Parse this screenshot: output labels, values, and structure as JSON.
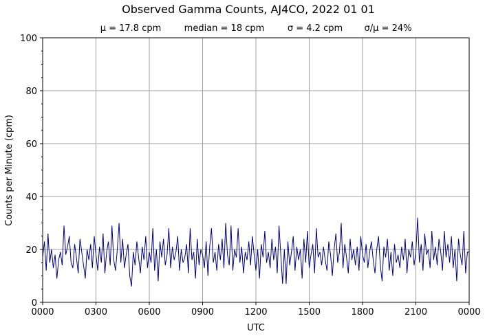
{
  "chart_data": {
    "type": "line",
    "title": "Observed Gamma Counts, AJ4CO, 2022 01 01",
    "subtitle": [
      "μ = 17.8 cpm",
      "median = 18 cpm",
      "σ = 4.2 cpm",
      "σ/μ = 24%"
    ],
    "xlabel": "UTC",
    "ylabel": "Counts per Minute (cpm)",
    "x_tick_labels": [
      "0000",
      "0300",
      "0600",
      "0900",
      "1200",
      "1500",
      "1800",
      "2100",
      "0000"
    ],
    "x_range_hours": [
      0,
      24
    ],
    "ylim": [
      0,
      100
    ],
    "y_ticks": [
      0,
      20,
      40,
      60,
      80,
      100
    ],
    "y_minor_step": 5,
    "grid": true,
    "line_color": "#000080",
    "series": [
      {
        "sample_interval_minutes": 6,
        "values": [
          17,
          23,
          12,
          26,
          15,
          20,
          13,
          18,
          9,
          16,
          19,
          14,
          29,
          18,
          21,
          25,
          15,
          13,
          22,
          17,
          11,
          24,
          19,
          14,
          9,
          20,
          16,
          22,
          13,
          25,
          18,
          12,
          21,
          15,
          26,
          11,
          19,
          23,
          14,
          29,
          16,
          12,
          20,
          30,
          15,
          24,
          13,
          18,
          22,
          10,
          6,
          19,
          14,
          23,
          17,
          11,
          21,
          16,
          25,
          13,
          19,
          15,
          28,
          12,
          20,
          8,
          23,
          17,
          24,
          14,
          18,
          28,
          13,
          21,
          16,
          19,
          25,
          12,
          20,
          15,
          17,
          22,
          11,
          28,
          16,
          19,
          9,
          24,
          14,
          20,
          18,
          13,
          23,
          10,
          21,
          28,
          15,
          19,
          12,
          22,
          16,
          24,
          13,
          30,
          18,
          14,
          29,
          12,
          20,
          17,
          28,
          15,
          21,
          11,
          19,
          16,
          23,
          14,
          25,
          18,
          12,
          20,
          9,
          22,
          17,
          27,
          15,
          19,
          13,
          24,
          16,
          21,
          11,
          29,
          18,
          7,
          20,
          7,
          23,
          14,
          19,
          25,
          12,
          21,
          16,
          20,
          9,
          24,
          15,
          27,
          13,
          18,
          22,
          11,
          28,
          17,
          19,
          14,
          21,
          16,
          12,
          23,
          18,
          10,
          20,
          26,
          15,
          19,
          30,
          13,
          22,
          17,
          11,
          24,
          16,
          20,
          14,
          21,
          12,
          25,
          18,
          15,
          22,
          13,
          19,
          23,
          16,
          11,
          20,
          25,
          14,
          8,
          21,
          17,
          24,
          12,
          19,
          10,
          22,
          15,
          18,
          13,
          21,
          16,
          24,
          11,
          20,
          17,
          23,
          14,
          19,
          32,
          15,
          22,
          12,
          26,
          18,
          20,
          13,
          27,
          16,
          21,
          14,
          24,
          19,
          12,
          27,
          17,
          22,
          15,
          25,
          13,
          20,
          8,
          24,
          18,
          14,
          27,
          11,
          19
        ]
      }
    ]
  }
}
